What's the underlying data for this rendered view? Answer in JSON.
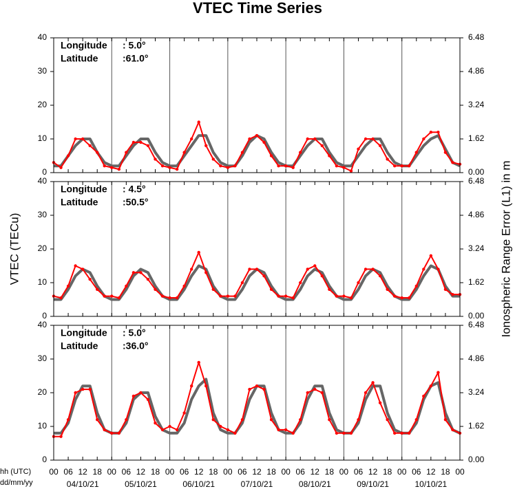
{
  "chart_data": [
    {
      "type": "line",
      "title": "VTEC Time Series",
      "longitude_label": "Longitude",
      "longitude": ":  5.0°",
      "latitude_label": "Latitude",
      "latitude": ":61.0°",
      "x": [
        0,
        3,
        6,
        9,
        12,
        15,
        18,
        21,
        24,
        27,
        30,
        33,
        36,
        39,
        42,
        45,
        48,
        51,
        54,
        57,
        60,
        63,
        66,
        69,
        72,
        75,
        78,
        81,
        84,
        87,
        90,
        93,
        96,
        99,
        102,
        105,
        108,
        111,
        114,
        117,
        120,
        123,
        126,
        129,
        132,
        135,
        138,
        141,
        144,
        147,
        150,
        153,
        156,
        159,
        162,
        165,
        168
      ],
      "xlim": [
        0,
        168
      ],
      "ylim": [
        0,
        40
      ],
      "yticks": [
        0,
        10,
        20,
        30,
        40
      ],
      "y2lim": [
        0,
        6.48
      ],
      "y2ticks": [
        {
          "value": 0,
          "label": "0.00"
        },
        {
          "value": 1.62,
          "label": "1.62"
        },
        {
          "value": 3.24,
          "label": "3.24"
        },
        {
          "value": 4.86,
          "label": "4.86"
        },
        {
          "value": 6.48,
          "label": "6.48"
        }
      ],
      "series": [
        {
          "color": "#666666",
          "values": [
            2,
            2,
            5,
            8,
            10,
            10,
            6,
            3,
            2,
            2,
            5,
            8,
            10,
            10,
            6,
            3,
            2,
            2,
            5,
            8,
            11,
            11,
            6,
            3,
            2,
            2,
            5,
            9,
            11,
            10,
            6,
            3,
            2,
            2,
            5,
            8,
            10,
            10,
            6,
            3,
            2,
            2,
            5,
            8,
            10,
            10,
            6,
            3,
            2,
            2,
            5,
            8,
            10,
            11,
            7,
            3,
            2
          ]
        },
        {
          "color": "#ff0000",
          "values": [
            3,
            1.5,
            5,
            10,
            10,
            8,
            6,
            2,
            1.5,
            1,
            6,
            9,
            9,
            8,
            4,
            2,
            1.5,
            1,
            6,
            10,
            15,
            8,
            4,
            2,
            1.5,
            2,
            6,
            10,
            11,
            9,
            5,
            2,
            2,
            1.5,
            6,
            10,
            10,
            8,
            5,
            2,
            1.5,
            0.5,
            7,
            10,
            10,
            8,
            4,
            2,
            2,
            2,
            6,
            10,
            12,
            12,
            6,
            3,
            2.5
          ]
        }
      ]
    },
    {
      "type": "line",
      "ylabel": "VTEC (TECu)",
      "y2label": "Ionospheric Range Error (L1) in m",
      "longitude_label": "Longitude",
      "longitude": ":  4.5°",
      "latitude_label": "Latitude",
      "latitude": ":50.5°",
      "x": [
        0,
        3,
        6,
        9,
        12,
        15,
        18,
        21,
        24,
        27,
        30,
        33,
        36,
        39,
        42,
        45,
        48,
        51,
        54,
        57,
        60,
        63,
        66,
        69,
        72,
        75,
        78,
        81,
        84,
        87,
        90,
        93,
        96,
        99,
        102,
        105,
        108,
        111,
        114,
        117,
        120,
        123,
        126,
        129,
        132,
        135,
        138,
        141,
        144,
        147,
        150,
        153,
        156,
        159,
        162,
        165,
        168
      ],
      "xlim": [
        0,
        168
      ],
      "ylim": [
        0,
        40
      ],
      "yticks": [
        0,
        10,
        20,
        30,
        40
      ],
      "y2lim": [
        0,
        6.48
      ],
      "y2ticks": [
        {
          "value": 0,
          "label": "0.00"
        },
        {
          "value": 1.62,
          "label": "1.62"
        },
        {
          "value": 3.24,
          "label": "3.24"
        },
        {
          "value": 4.86,
          "label": "4.86"
        },
        {
          "value": 6.48,
          "label": "6.48"
        }
      ],
      "series": [
        {
          "color": "#666666",
          "values": [
            5,
            5,
            8,
            12,
            14,
            13,
            9,
            6,
            5,
            5,
            8,
            12,
            14,
            13,
            9,
            6,
            5,
            5,
            8,
            12,
            15,
            14,
            9,
            6,
            5,
            5,
            8,
            12,
            14,
            13,
            9,
            6,
            5,
            5,
            8,
            12,
            14,
            13,
            9,
            6,
            5,
            5,
            8,
            12,
            14,
            13,
            9,
            6,
            5,
            5,
            8,
            12,
            15,
            14,
            9,
            6,
            6
          ]
        },
        {
          "color": "#ff0000",
          "values": [
            6,
            5.5,
            9,
            15,
            14,
            11,
            8,
            6,
            6,
            5.5,
            9,
            13,
            13,
            11,
            8,
            6,
            5.5,
            5.5,
            9,
            14,
            19,
            13,
            8,
            6,
            6,
            6,
            10,
            14,
            14,
            12,
            8,
            6,
            6,
            5.5,
            10,
            14,
            15,
            12,
            8,
            6,
            6,
            5.5,
            10,
            14,
            14,
            12,
            8,
            6,
            5.5,
            5.5,
            9,
            14,
            18,
            14,
            8,
            6.5,
            6.5
          ]
        }
      ]
    },
    {
      "type": "line",
      "xlabel": "hh (UTC)",
      "date_label": "dd/mm/yy",
      "longitude_label": "Longitude",
      "longitude": ":  5.0°",
      "latitude_label": "Latitude",
      "latitude": ":36.0°",
      "x": [
        0,
        3,
        6,
        9,
        12,
        15,
        18,
        21,
        24,
        27,
        30,
        33,
        36,
        39,
        42,
        45,
        48,
        51,
        54,
        57,
        60,
        63,
        66,
        69,
        72,
        75,
        78,
        81,
        84,
        87,
        90,
        93,
        96,
        99,
        102,
        105,
        108,
        111,
        114,
        117,
        120,
        123,
        126,
        129,
        132,
        135,
        138,
        141,
        144,
        147,
        150,
        153,
        156,
        159,
        162,
        165,
        168
      ],
      "xlim": [
        0,
        168
      ],
      "ylim": [
        0,
        40
      ],
      "yticks": [
        0,
        10,
        20,
        30,
        40
      ],
      "y2lim": [
        0,
        6.48
      ],
      "y2ticks": [
        {
          "value": 0,
          "label": "0.00"
        },
        {
          "value": 1.62,
          "label": "1.62"
        },
        {
          "value": 3.24,
          "label": "3.24"
        },
        {
          "value": 4.86,
          "label": "4.86"
        },
        {
          "value": 6.48,
          "label": "6.48"
        }
      ],
      "xticks": [
        {
          "value": 0,
          "label": "00"
        },
        {
          "value": 6,
          "label": "06"
        },
        {
          "value": 12,
          "label": "12"
        },
        {
          "value": 18,
          "label": "18"
        },
        {
          "value": 24,
          "label": "00"
        },
        {
          "value": 30,
          "label": "06"
        },
        {
          "value": 36,
          "label": "12"
        },
        {
          "value": 42,
          "label": "18"
        },
        {
          "value": 48,
          "label": "00"
        },
        {
          "value": 54,
          "label": "06"
        },
        {
          "value": 60,
          "label": "12"
        },
        {
          "value": 66,
          "label": "18"
        },
        {
          "value": 72,
          "label": "00"
        },
        {
          "value": 78,
          "label": "06"
        },
        {
          "value": 84,
          "label": "12"
        },
        {
          "value": 90,
          "label": "18"
        },
        {
          "value": 96,
          "label": "00"
        },
        {
          "value": 102,
          "label": "06"
        },
        {
          "value": 108,
          "label": "12"
        },
        {
          "value": 114,
          "label": "18"
        },
        {
          "value": 120,
          "label": "00"
        },
        {
          "value": 126,
          "label": "06"
        },
        {
          "value": 132,
          "label": "12"
        },
        {
          "value": 138,
          "label": "18"
        },
        {
          "value": 144,
          "label": "00"
        },
        {
          "value": 150,
          "label": "06"
        },
        {
          "value": 156,
          "label": "12"
        },
        {
          "value": 162,
          "label": "18"
        },
        {
          "value": 168,
          "label": "00"
        }
      ],
      "dates": [
        "04/10/21",
        "05/10/21",
        "06/10/21",
        "07/10/21",
        "08/10/21",
        "09/10/21",
        "10/10/21"
      ],
      "series": [
        {
          "color": "#666666",
          "values": [
            8,
            8,
            11,
            18,
            22,
            22,
            14,
            9,
            8,
            8,
            11,
            18,
            20,
            20,
            13,
            9,
            8,
            8,
            11,
            18,
            22,
            24,
            14,
            9,
            8,
            8,
            11,
            18,
            22,
            22,
            14,
            9,
            8,
            8,
            11,
            18,
            22,
            22,
            14,
            9,
            8,
            8,
            11,
            18,
            22,
            22,
            14,
            9,
            8,
            8,
            11,
            18,
            22,
            23,
            14,
            9,
            8
          ]
        },
        {
          "color": "#ff0000",
          "values": [
            7,
            7,
            12,
            20,
            21,
            21,
            12,
            9,
            8,
            8,
            12,
            19,
            20,
            18,
            11,
            9,
            10,
            9,
            14,
            22,
            29,
            22,
            12,
            10,
            9,
            8,
            12,
            21,
            22,
            21,
            12,
            9,
            9,
            8,
            12,
            20,
            21,
            20,
            12,
            8,
            8,
            8,
            12,
            20,
            23,
            17,
            12,
            8,
            8,
            8,
            12,
            19,
            22,
            26,
            12,
            9,
            8
          ]
        }
      ]
    }
  ]
}
